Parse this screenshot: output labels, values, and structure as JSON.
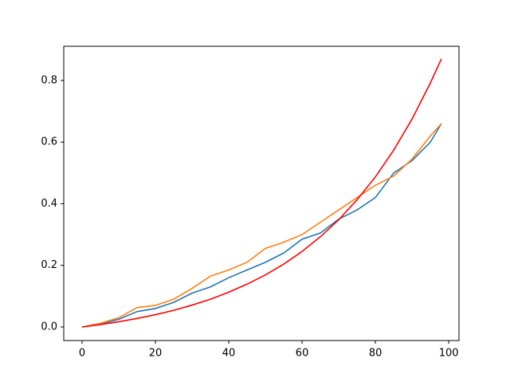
{
  "chart_data": {
    "type": "line",
    "x": [
      0,
      5,
      10,
      15,
      20,
      25,
      30,
      35,
      40,
      45,
      50,
      55,
      60,
      65,
      70,
      75,
      80,
      85,
      90,
      95,
      98
    ],
    "series": [
      {
        "color": "#1f77b4",
        "values": [
          0,
          0.01,
          0.025,
          0.05,
          0.06,
          0.08,
          0.11,
          0.13,
          0.16,
          0.185,
          0.21,
          0.24,
          0.285,
          0.305,
          0.35,
          0.38,
          0.42,
          0.5,
          0.54,
          0.6,
          0.66
        ]
      },
      {
        "color": "#ff7f0e",
        "values": [
          0,
          0.012,
          0.03,
          0.063,
          0.07,
          0.09,
          0.125,
          0.165,
          0.185,
          0.21,
          0.255,
          0.275,
          0.3,
          0.34,
          0.38,
          0.42,
          0.46,
          0.49,
          0.545,
          0.62,
          0.66
        ]
      },
      {
        "color": "#ff0000",
        "values": [
          0,
          0.0079,
          0.017,
          0.0276,
          0.04,
          0.054,
          0.071,
          0.09,
          0.113,
          0.139,
          0.169,
          0.204,
          0.245,
          0.293,
          0.348,
          0.413,
          0.487,
          0.574,
          0.675,
          0.792,
          0.87
        ]
      }
    ],
    "xlim": [
      -5,
      102.8
    ],
    "ylim": [
      -0.044,
      0.911
    ],
    "xticks": [
      0,
      20,
      40,
      60,
      80,
      100
    ],
    "yticks": [
      {
        "value": 0,
        "label": "0.0"
      },
      {
        "value": 0.2,
        "label": "0.2"
      },
      {
        "value": 0.4,
        "label": "0.4"
      },
      {
        "value": 0.6,
        "label": "0.6"
      },
      {
        "value": 0.8,
        "label": "0.8"
      }
    ]
  }
}
